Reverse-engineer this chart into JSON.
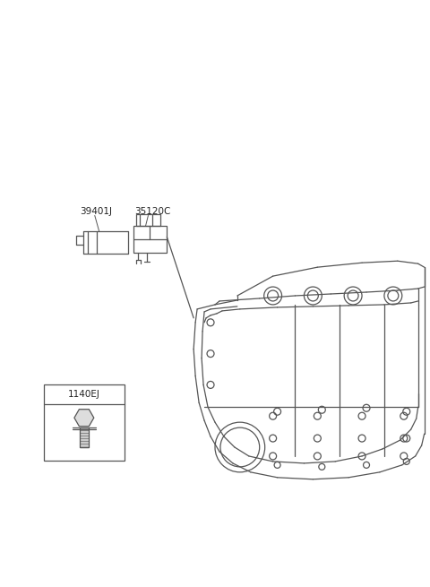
{
  "background_color": "#ffffff",
  "fig_width": 4.8,
  "fig_height": 6.55,
  "dpi": 100,
  "label_39401J": "39401J",
  "label_35120C": "35120C",
  "label_1140EJ": "1140EJ",
  "line_color": "#555555",
  "text_color": "#222222",
  "font_size_labels": 7.5,
  "font_size_box_label": 7.5
}
